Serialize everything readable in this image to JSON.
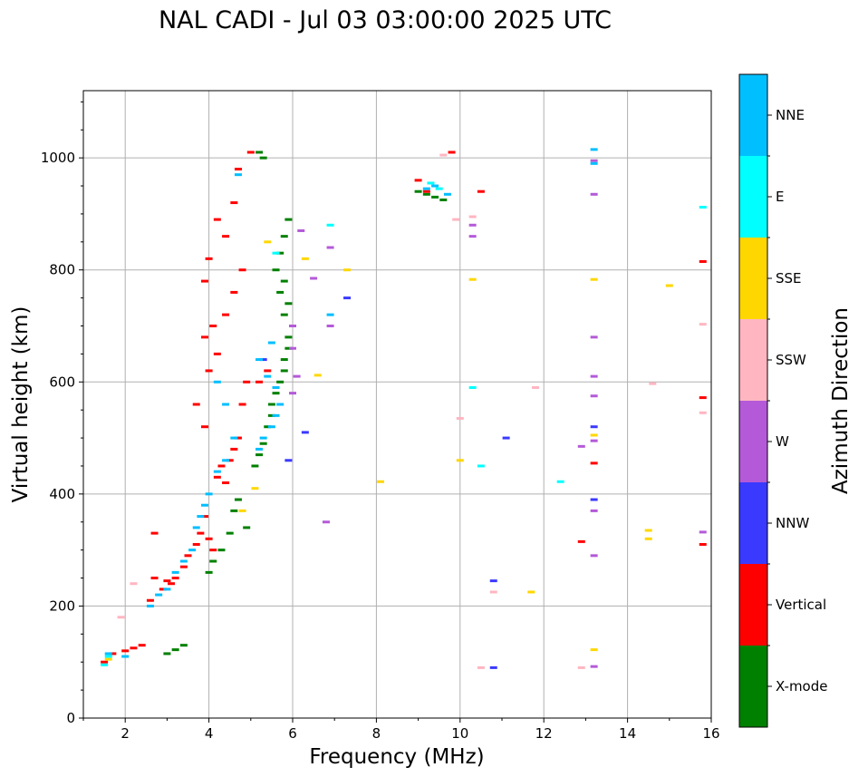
{
  "chart_data": {
    "type": "scatter",
    "title": "NAL CADI - Jul 03 03:00:00 2025 UTC",
    "xlabel": "Frequency (MHz)",
    "ylabel": "Virtual height (km)",
    "xlim": [
      1,
      16
    ],
    "ylim": [
      0,
      1120
    ],
    "xticks": [
      2,
      4,
      6,
      8,
      10,
      12,
      14,
      16
    ],
    "yticks": [
      0,
      200,
      400,
      600,
      800,
      1000
    ],
    "grid": true,
    "colorbar": {
      "label": "Azimuth Direction",
      "categories": [
        {
          "name": "X-mode",
          "color": "#008000"
        },
        {
          "name": "Vertical",
          "color": "#ff0000"
        },
        {
          "name": "NNW",
          "color": "#3a3aff"
        },
        {
          "name": "W",
          "color": "#b45ad8"
        },
        {
          "name": "SSW",
          "color": "#ffb6c1"
        },
        {
          "name": "SSE",
          "color": "#ffd700"
        },
        {
          "name": "E",
          "color": "#00ffff"
        },
        {
          "name": "NNE",
          "color": "#00bfff"
        }
      ]
    },
    "series": [
      {
        "name": "X-mode",
        "color": "#008000",
        "points": [
          [
            3.0,
            115
          ],
          [
            3.2,
            122
          ],
          [
            3.4,
            130
          ],
          [
            4.0,
            260
          ],
          [
            4.1,
            280
          ],
          [
            4.3,
            300
          ],
          [
            4.5,
            330
          ],
          [
            4.6,
            370
          ],
          [
            4.7,
            390
          ],
          [
            5.1,
            450
          ],
          [
            5.2,
            470
          ],
          [
            5.3,
            490
          ],
          [
            5.4,
            520
          ],
          [
            5.5,
            540
          ],
          [
            5.5,
            560
          ],
          [
            5.6,
            580
          ],
          [
            5.7,
            600
          ],
          [
            5.8,
            620
          ],
          [
            5.8,
            640
          ],
          [
            5.9,
            660
          ],
          [
            5.9,
            680
          ],
          [
            6.0,
            700
          ],
          [
            5.8,
            720
          ],
          [
            5.9,
            740
          ],
          [
            5.7,
            760
          ],
          [
            5.8,
            780
          ],
          [
            5.6,
            800
          ],
          [
            5.7,
            830
          ],
          [
            5.8,
            860
          ],
          [
            5.9,
            890
          ],
          [
            5.2,
            1010
          ],
          [
            5.3,
            1000
          ],
          [
            9.0,
            940
          ],
          [
            9.2,
            935
          ],
          [
            9.4,
            930
          ],
          [
            9.6,
            925
          ],
          [
            4.9,
            340
          ]
        ]
      },
      {
        "name": "Vertical",
        "color": "#ff0000",
        "points": [
          [
            1.5,
            100
          ],
          [
            1.7,
            115
          ],
          [
            2.0,
            120
          ],
          [
            2.2,
            125
          ],
          [
            2.4,
            130
          ],
          [
            2.6,
            210
          ],
          [
            2.7,
            250
          ],
          [
            2.7,
            330
          ],
          [
            2.9,
            230
          ],
          [
            3.0,
            245
          ],
          [
            3.1,
            240
          ],
          [
            3.2,
            250
          ],
          [
            3.4,
            270
          ],
          [
            3.5,
            290
          ],
          [
            3.7,
            310
          ],
          [
            3.8,
            330
          ],
          [
            3.9,
            360
          ],
          [
            4.0,
            320
          ],
          [
            4.1,
            300
          ],
          [
            4.2,
            430
          ],
          [
            4.3,
            450
          ],
          [
            4.5,
            460
          ],
          [
            4.6,
            480
          ],
          [
            4.7,
            500
          ],
          [
            4.4,
            420
          ],
          [
            4.8,
            560
          ],
          [
            4.9,
            600
          ],
          [
            4.0,
            620
          ],
          [
            4.2,
            650
          ],
          [
            3.9,
            680
          ],
          [
            4.1,
            700
          ],
          [
            4.4,
            720
          ],
          [
            4.6,
            760
          ],
          [
            4.8,
            800
          ],
          [
            4.2,
            890
          ],
          [
            4.4,
            860
          ],
          [
            4.6,
            920
          ],
          [
            4.7,
            980
          ],
          [
            5.0,
            1010
          ],
          [
            3.9,
            780
          ],
          [
            4.0,
            820
          ],
          [
            5.2,
            600
          ],
          [
            5.4,
            620
          ],
          [
            9.0,
            960
          ],
          [
            9.2,
            940
          ],
          [
            9.8,
            1010
          ],
          [
            10.5,
            940
          ],
          [
            12.9,
            315
          ],
          [
            13.2,
            455
          ],
          [
            15.8,
            815
          ],
          [
            15.8,
            572
          ],
          [
            15.8,
            310
          ],
          [
            3.7,
            560
          ],
          [
            3.9,
            520
          ]
        ]
      },
      {
        "name": "NNW",
        "color": "#3a3aff",
        "points": [
          [
            5.3,
            640
          ],
          [
            6.3,
            510
          ],
          [
            7.3,
            750
          ],
          [
            10.8,
            90
          ],
          [
            11.1,
            500
          ],
          [
            13.2,
            390
          ],
          [
            13.2,
            520
          ],
          [
            10.8,
            245
          ],
          [
            5.9,
            460
          ]
        ]
      },
      {
        "name": "W",
        "color": "#b45ad8",
        "points": [
          [
            6.0,
            580
          ],
          [
            6.1,
            610
          ],
          [
            6.0,
            660
          ],
          [
            6.0,
            700
          ],
          [
            6.2,
            870
          ],
          [
            6.9,
            840
          ],
          [
            6.9,
            700
          ],
          [
            6.8,
            350
          ],
          [
            10.3,
            880
          ],
          [
            10.3,
            860
          ],
          [
            12.9,
            485
          ],
          [
            13.2,
            495
          ],
          [
            13.2,
            610
          ],
          [
            13.2,
            575
          ],
          [
            13.2,
            370
          ],
          [
            13.2,
            290
          ],
          [
            13.2,
            92
          ],
          [
            13.2,
            995
          ],
          [
            13.2,
            935
          ],
          [
            13.2,
            680
          ],
          [
            15.8,
            332
          ],
          [
            6.5,
            785
          ]
        ]
      },
      {
        "name": "SSW",
        "color": "#ffb6c1",
        "points": [
          [
            2.2,
            240
          ],
          [
            1.9,
            180
          ],
          [
            9.9,
            890
          ],
          [
            10.0,
            535
          ],
          [
            10.5,
            90
          ],
          [
            10.8,
            225
          ],
          [
            11.8,
            590
          ],
          [
            12.9,
            90
          ],
          [
            14.6,
            597
          ],
          [
            15.8,
            545
          ],
          [
            15.8,
            703
          ],
          [
            9.6,
            1005
          ],
          [
            10.3,
            895
          ]
        ]
      },
      {
        "name": "SSE",
        "color": "#ffd700",
        "points": [
          [
            1.6,
            105
          ],
          [
            5.4,
            850
          ],
          [
            6.3,
            820
          ],
          [
            6.6,
            612
          ],
          [
            7.3,
            800
          ],
          [
            8.1,
            422
          ],
          [
            10.0,
            460
          ],
          [
            10.3,
            783
          ],
          [
            11.7,
            225
          ],
          [
            13.2,
            783
          ],
          [
            13.2,
            505
          ],
          [
            13.2,
            122
          ],
          [
            14.5,
            335
          ],
          [
            14.5,
            320
          ],
          [
            15.0,
            772
          ],
          [
            4.8,
            370
          ],
          [
            5.1,
            410
          ]
        ]
      },
      {
        "name": "E",
        "color": "#00ffff",
        "points": [
          [
            1.5,
            95
          ],
          [
            1.6,
            110
          ],
          [
            9.3,
            955
          ],
          [
            9.5,
            945
          ],
          [
            10.3,
            590
          ],
          [
            10.5,
            450
          ],
          [
            12.4,
            422
          ],
          [
            15.8,
            912
          ],
          [
            5.6,
            830
          ],
          [
            6.9,
            880
          ]
        ]
      },
      {
        "name": "NNE",
        "color": "#00bfff",
        "points": [
          [
            1.6,
            115
          ],
          [
            2.6,
            200
          ],
          [
            2.8,
            220
          ],
          [
            3.0,
            230
          ],
          [
            3.2,
            260
          ],
          [
            3.4,
            280
          ],
          [
            3.6,
            300
          ],
          [
            3.7,
            340
          ],
          [
            3.8,
            360
          ],
          [
            3.9,
            380
          ],
          [
            4.0,
            400
          ],
          [
            4.2,
            440
          ],
          [
            4.4,
            460
          ],
          [
            5.2,
            480
          ],
          [
            5.3,
            500
          ],
          [
            5.5,
            520
          ],
          [
            5.6,
            540
          ],
          [
            5.7,
            560
          ],
          [
            5.6,
            590
          ],
          [
            5.4,
            610
          ],
          [
            5.2,
            640
          ],
          [
            5.5,
            670
          ],
          [
            4.2,
            600
          ],
          [
            4.4,
            560
          ],
          [
            4.6,
            500
          ],
          [
            6.9,
            720
          ],
          [
            9.2,
            945
          ],
          [
            9.4,
            950
          ],
          [
            9.7,
            935
          ],
          [
            13.2,
            990
          ],
          [
            13.2,
            1015
          ],
          [
            4.7,
            970
          ],
          [
            2.0,
            110
          ]
        ]
      }
    ]
  }
}
